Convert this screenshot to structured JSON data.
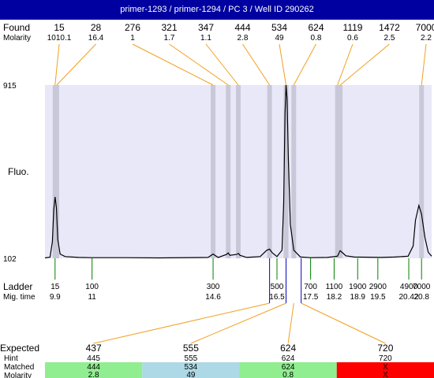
{
  "header": {
    "title": "primer-1293 / primer-1294 / PC 3 / Well ID 290262"
  },
  "labels": {
    "found": "Found",
    "molarity": "Molarity",
    "fluo": "Fluo.",
    "ladder": "Ladder",
    "mig_time": "Mig. time",
    "expected": "Expected",
    "hint": "Hint",
    "matched": "Matched",
    "molarity_bottom": "Molarity"
  },
  "colors": {
    "header_bg": "#0000a0",
    "plot_bg": "#e8e8f8",
    "peak_band": "#c8c8d8",
    "orange_link": "#f0a020",
    "ladder_green": "#008000",
    "blue_marker": "#0000c0",
    "match_green": "#90ee90",
    "match_blue": "#add8e6",
    "match_red": "#ff0000"
  },
  "chart_data": {
    "type": "line",
    "title": "primer-1293 / primer-1294 / PC 3 / Well ID 290262",
    "ylabel": "Fluo.",
    "xlabel": "Mig. time",
    "ylim": [
      102,
      915
    ],
    "xlim": [
      9.6,
      21.1
    ],
    "y_ticks": [
      "915",
      "102"
    ],
    "signal": [
      [
        9.6,
        104
      ],
      [
        9.75,
        107
      ],
      [
        9.82,
        180
      ],
      [
        9.86,
        330
      ],
      [
        9.9,
        390
      ],
      [
        9.94,
        340
      ],
      [
        9.98,
        190
      ],
      [
        10.05,
        122
      ],
      [
        10.2,
        110
      ],
      [
        10.6,
        106
      ],
      [
        11,
        105
      ],
      [
        12,
        105
      ],
      [
        13,
        104
      ],
      [
        14.45,
        106
      ],
      [
        14.6,
        122
      ],
      [
        14.75,
        106
      ],
      [
        15.0,
        120
      ],
      [
        15.05,
        127
      ],
      [
        15.1,
        116
      ],
      [
        15.3,
        120
      ],
      [
        15.35,
        125
      ],
      [
        15.4,
        116
      ],
      [
        15.6,
        106
      ],
      [
        16.0,
        110
      ],
      [
        16.2,
        140
      ],
      [
        16.28,
        145
      ],
      [
        16.36,
        128
      ],
      [
        16.5,
        110
      ],
      [
        16.65,
        140
      ],
      [
        16.7,
        360
      ],
      [
        16.74,
        780
      ],
      [
        16.77,
        915
      ],
      [
        16.8,
        850
      ],
      [
        16.84,
        560
      ],
      [
        16.9,
        260
      ],
      [
        17.0,
        140
      ],
      [
        17.2,
        108
      ],
      [
        17.5,
        105
      ],
      [
        18.0,
        106
      ],
      [
        18.3,
        112
      ],
      [
        18.38,
        138
      ],
      [
        18.45,
        128
      ],
      [
        18.55,
        114
      ],
      [
        18.8,
        108
      ],
      [
        19.2,
        107
      ],
      [
        19.6,
        106
      ],
      [
        20.0,
        108
      ],
      [
        20.4,
        112
      ],
      [
        20.55,
        160
      ],
      [
        20.62,
        280
      ],
      [
        20.72,
        350
      ],
      [
        20.8,
        310
      ],
      [
        20.9,
        200
      ],
      [
        21.0,
        130
      ],
      [
        21.1,
        112
      ]
    ],
    "found_peaks": [
      {
        "size": "15",
        "molarity": "1010.1",
        "time": 9.9
      },
      {
        "size": "28",
        "molarity": "16.4",
        "time": 9.95
      },
      {
        "size": "276",
        "molarity": "1",
        "time": 14.6
      },
      {
        "size": "321",
        "molarity": "1.7",
        "time": 15.05
      },
      {
        "size": "347",
        "molarity": "1.1",
        "time": 15.35
      },
      {
        "size": "444",
        "molarity": "2.8",
        "time": 16.28
      },
      {
        "size": "534",
        "molarity": "49",
        "time": 16.77
      },
      {
        "size": "624",
        "molarity": "0.8",
        "time": 17.0
      },
      {
        "size": "1119",
        "molarity": "0.6",
        "time": 18.3
      },
      {
        "size": "1472",
        "molarity": "2.5",
        "time": 18.38
      },
      {
        "size": "7000",
        "molarity": "2.2",
        "time": 20.8
      }
    ],
    "ladder": [
      {
        "size": "15",
        "time": "9.9",
        "t": 9.9
      },
      {
        "size": "100",
        "time": "11",
        "t": 11.0
      },
      {
        "size": "300",
        "time": "14.6",
        "t": 14.6
      },
      {
        "size": "500",
        "time": "16.5",
        "t": 16.5
      },
      {
        "size": "700",
        "time": "17.5",
        "t": 17.5
      },
      {
        "size": "1100",
        "time": "18.2",
        "t": 18.2
      },
      {
        "size": "1900",
        "time": "18.9",
        "t": 18.9
      },
      {
        "size": "2900",
        "time": "19.5",
        "t": 19.5
      },
      {
        "size": "4900",
        "time": "20.42",
        "t": 20.42
      },
      {
        "size": "7000",
        "time": "20.8",
        "t": 20.8
      }
    ],
    "blue_markers": [
      16.28,
      16.77,
      17.22
    ],
    "expected": [
      {
        "expected": "437",
        "hint": "445",
        "matched": "444",
        "molarity": "2.8",
        "time": 16.28,
        "color": "green"
      },
      {
        "expected": "555",
        "hint": "555",
        "matched": "534",
        "molarity": "49",
        "time": 16.77,
        "color": "blue"
      },
      {
        "expected": "624",
        "hint": "624",
        "matched": "624",
        "molarity": "0.8",
        "time": 17.0,
        "color": "green"
      },
      {
        "expected": "720",
        "hint": "720",
        "matched": "X",
        "molarity": "X",
        "time": 17.22,
        "color": "red"
      }
    ]
  }
}
